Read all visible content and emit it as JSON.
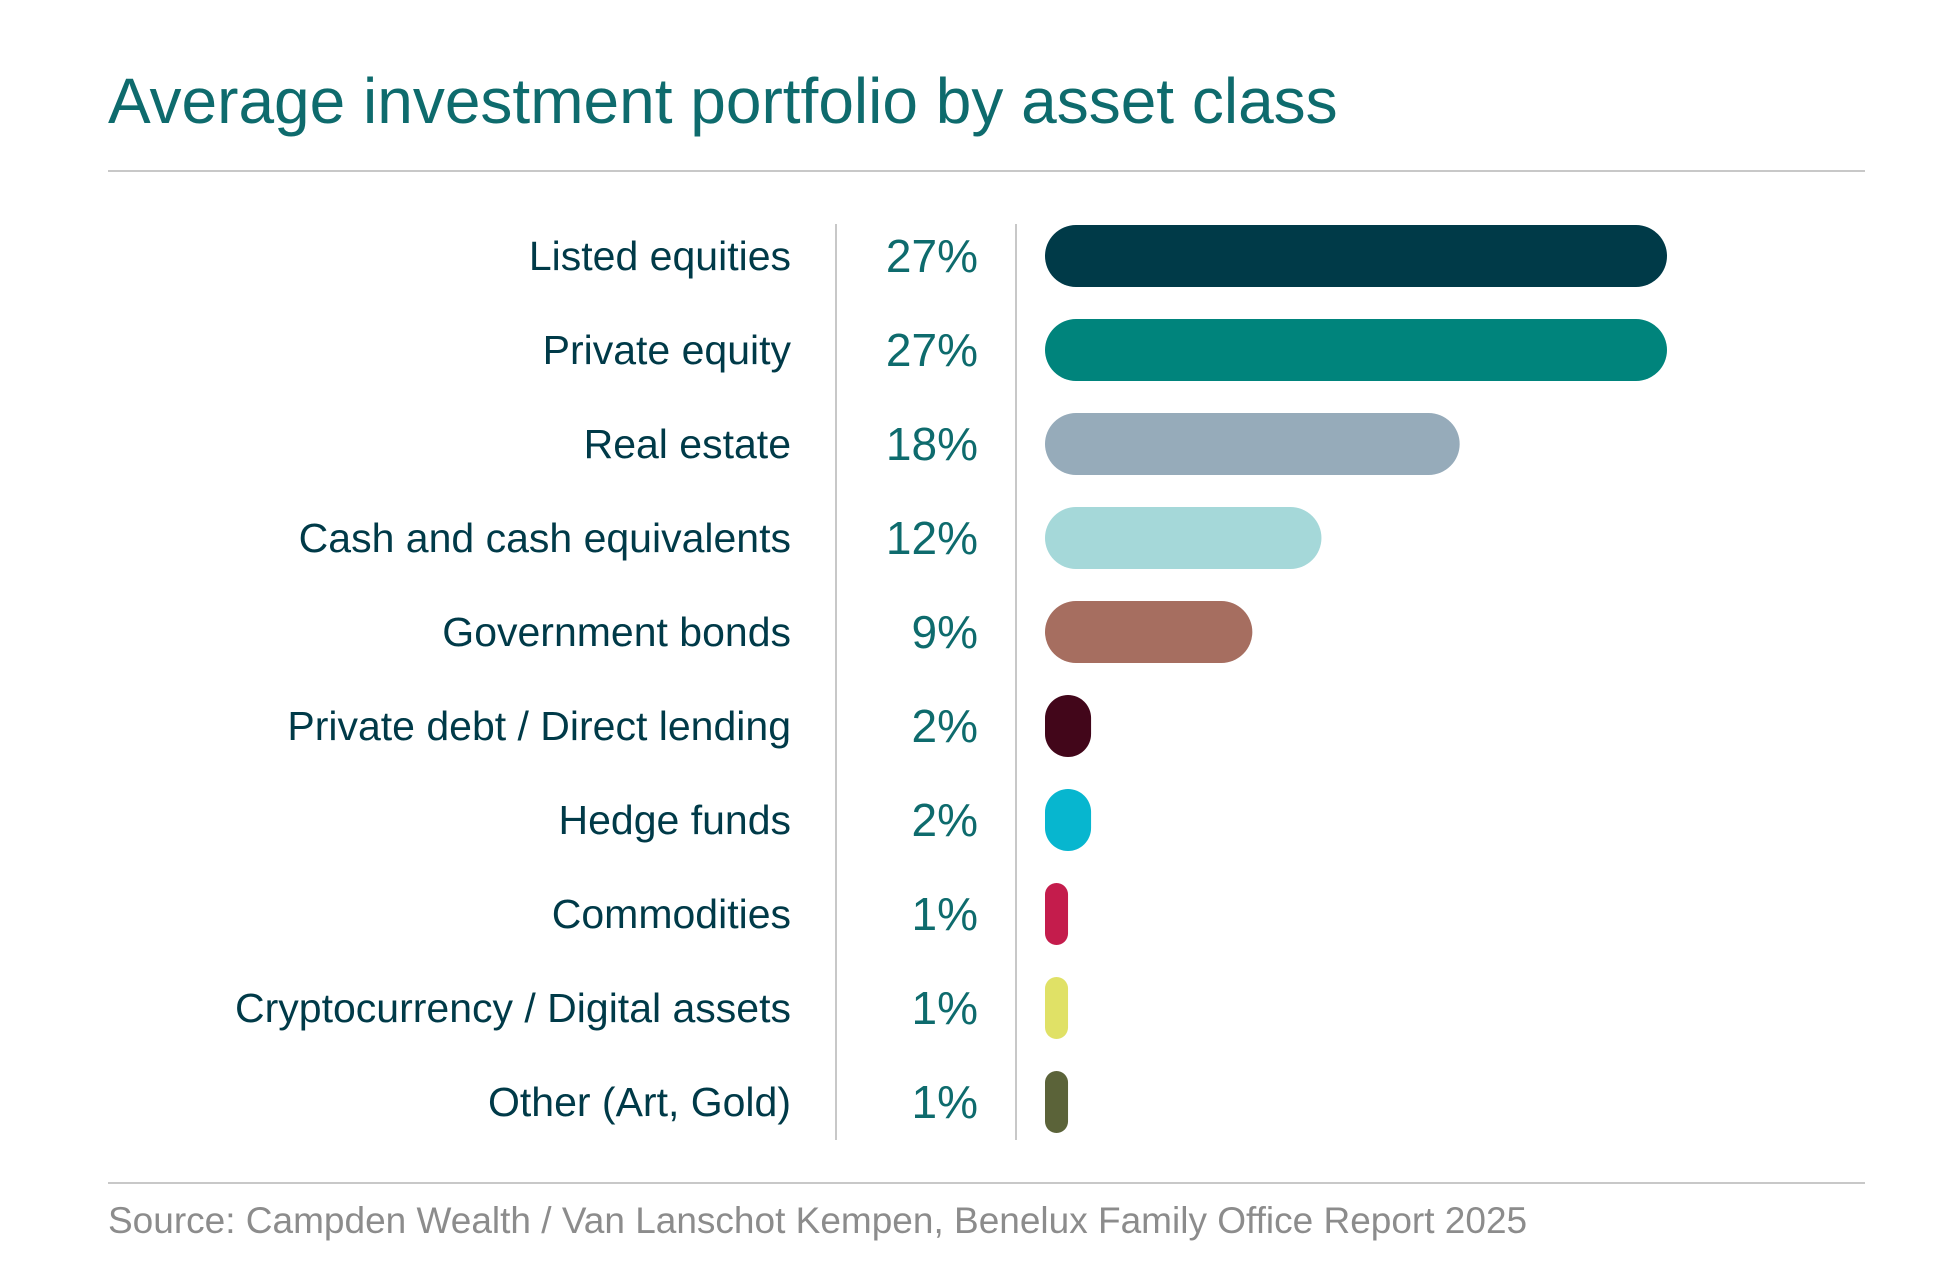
{
  "title": "Average investment portfolio by asset class",
  "source": "Source: Campden Wealth / Van Lanschot Kempen, Benelux Family Office Report 2025",
  "chart_data": {
    "type": "bar",
    "orientation": "horizontal",
    "title": "Average investment portfolio by asset class",
    "categories": [
      "Listed equities",
      "Private equity",
      "Real estate",
      "Cash and cash equivalents",
      "Government bonds",
      "Private debt / Direct lending",
      "Hedge funds",
      "Commodities",
      "Cryptocurrency / Digital assets",
      "Other (Art, Gold)"
    ],
    "values": [
      27,
      27,
      18,
      12,
      9,
      2,
      2,
      1,
      1,
      1
    ],
    "value_labels": [
      "27%",
      "27%",
      "18%",
      "12%",
      "9%",
      "2%",
      "2%",
      "1%",
      "1%",
      "1%"
    ],
    "unit": "%",
    "xlim": [
      0,
      27
    ],
    "colors": [
      "#003a48",
      "#00847c",
      "#96abba",
      "#a5d8d9",
      "#a66e60",
      "#42061a",
      "#07b6cf",
      "#c41c4c",
      "#e0e166",
      "#5b6339"
    ],
    "label_color": "#003a48",
    "value_color": "#0e6b6d",
    "grid": false,
    "legend": "none"
  }
}
